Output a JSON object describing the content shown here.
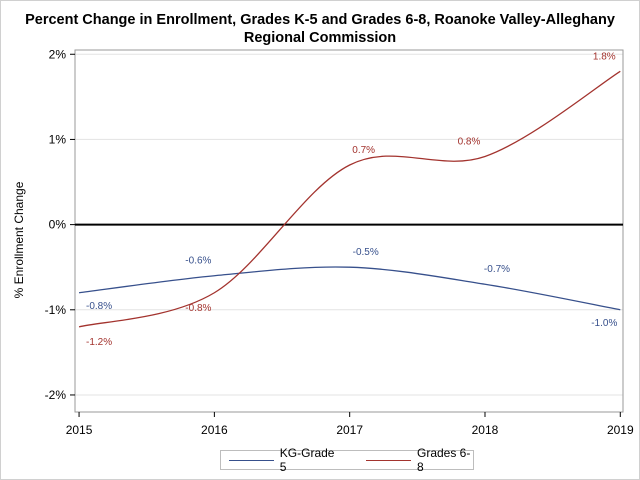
{
  "colors": {
    "kg": "#37508c",
    "g68": "#a3332e",
    "grid": "#e3e3e3",
    "zero": "#000000"
  },
  "chart_data": {
    "type": "line",
    "title_line1": "Percent Change in Enrollment, Grades K-5 and Grades 6-8, Roanoke Valley-Alleghany",
    "title_line2": "Regional Commission",
    "ylabel": "% Enrollment Change",
    "xlabel": "",
    "x": [
      2015,
      2016,
      2017,
      2018,
      2019
    ],
    "x_ticks": [
      "2015",
      "2016",
      "2017",
      "2018",
      "2019"
    ],
    "y_ticks": [
      "2%",
      "1%",
      "0%",
      "-1%",
      "-2%"
    ],
    "y_tick_values": [
      2,
      1,
      0,
      -1,
      -2
    ],
    "ylim": [
      -2.2,
      2.05
    ],
    "xlim": [
      2014.97,
      2019.02
    ],
    "grid": true,
    "zero_line": true,
    "legend_position": "bottom",
    "series": [
      {
        "name": "KG-Grade 5",
        "values": [
          -0.8,
          -0.6,
          -0.5,
          -0.7,
          -1.0
        ],
        "labels": [
          "-0.8%",
          "-0.6%",
          "-0.5%",
          "-0.7%",
          "-1.0%"
        ]
      },
      {
        "name": "Grades 6-8",
        "values": [
          -1.2,
          -0.8,
          0.7,
          0.8,
          1.8
        ],
        "labels": [
          "-1.2%",
          "-0.8%",
          "0.7%",
          "0.8%",
          "1.8%"
        ]
      }
    ]
  }
}
